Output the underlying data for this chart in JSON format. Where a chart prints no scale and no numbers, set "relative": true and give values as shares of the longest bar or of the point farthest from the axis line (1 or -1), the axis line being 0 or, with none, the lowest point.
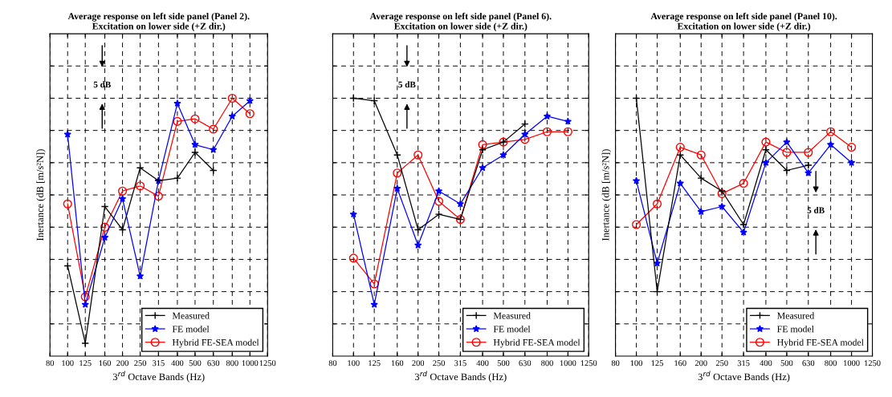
{
  "chart_data": [
    {
      "type": "line",
      "title": "Average response on left side panel (Panel 2).\nExcitation on lower side (+Z dir.)",
      "xlabel": "3$^{rd}$ Octave Bands (Hz)",
      "ylabel": "Inertance (dB [m/s²N])",
      "annotations": [
        "5 dB"
      ],
      "relative": true,
      "log": "x",
      "x": [
        100,
        125,
        160,
        200,
        250,
        315,
        400,
        500,
        630,
        800,
        1000
      ],
      "xlim": [
        80,
        1250
      ],
      "xticks": [
        80,
        100,
        125,
        160,
        200,
        250,
        315,
        400,
        500,
        630,
        800,
        1000,
        1250
      ],
      "grid": true,
      "legend": "bottom right",
      "line_style": "solid",
      "tick_labels": "x",
      "series": [
        {
          "name": "Measured",
          "color": "#000000",
          "marker": "cross",
          "values": [
            0.35,
            0.05,
            0.58,
            0.49,
            0.73,
            0.68,
            0.69,
            0.79,
            0.72,
            null,
            null
          ]
        },
        {
          "name": "FE model",
          "color": "#0000ff",
          "marker": "star",
          "values": [
            0.86,
            0.2,
            0.46,
            0.61,
            0.31,
            0.68,
            0.98,
            0.82,
            0.8,
            0.93,
            0.99
          ]
        },
        {
          "name": "Hybrid FE-SEA model",
          "color": "#ff0000",
          "marker": "circle",
          "values": [
            0.59,
            0.23,
            0.5,
            0.64,
            0.66,
            0.62,
            0.91,
            0.92,
            0.88,
            1,
            0.94
          ]
        }
      ]
    },
    {
      "type": "line",
      "title": "Average response on left side panel (Panel 6).\nExcitation on lower side (+Z dir.)",
      "xlabel": "3$^{rd}$ Octave Bands (Hz)",
      "annotations": [
        "5 dB"
      ],
      "relative": true,
      "log": "x",
      "x": [
        100,
        125,
        160,
        200,
        250,
        315,
        400,
        500,
        630,
        800,
        1000
      ],
      "xlim": [
        80,
        1250
      ],
      "xticks": [
        80,
        100,
        125,
        160,
        200,
        250,
        315,
        400,
        500,
        630,
        800,
        1000,
        1250
      ],
      "grid": true,
      "legend": "bottom right",
      "line_style": "solid",
      "tick_labels": "x",
      "series": [
        {
          "name": "Measured",
          "color": "#000000",
          "marker": "cross",
          "values": [
            1,
            0.99,
            0.78,
            0.49,
            0.55,
            0.53,
            0.8,
            0.83,
            0.9,
            null,
            null
          ]
        },
        {
          "name": "FE model",
          "color": "#0000ff",
          "marker": "star",
          "values": [
            0.55,
            0.2,
            0.65,
            0.43,
            0.64,
            0.59,
            0.73,
            0.78,
            0.86,
            0.93,
            0.91
          ]
        },
        {
          "name": "Hybrid FE-SEA model",
          "color": "#ff0000",
          "marker": "circle",
          "values": [
            0.38,
            0.28,
            0.71,
            0.78,
            0.6,
            0.53,
            0.82,
            0.83,
            0.84,
            0.87,
            0.87
          ]
        }
      ]
    },
    {
      "type": "line",
      "title": "Average response on left side panel (Panel 10).\nExcitation on lower side (+Z dir.)",
      "xlabel": "3$^{rd}$ Octave Bands (Hz)",
      "ylabel": "Inertance (dB [m/s²N])",
      "annotations": [
        "5 dB"
      ],
      "relative": true,
      "log": "x",
      "x": [
        100,
        125,
        160,
        200,
        250,
        315,
        400,
        500,
        630,
        800,
        1000
      ],
      "xlim": [
        80,
        1250
      ],
      "xticks": [
        80,
        100,
        125,
        160,
        200,
        250,
        315,
        400,
        500,
        630,
        800,
        1000,
        1250
      ],
      "grid": true,
      "legend": "bottom right",
      "line_style": "solid",
      "tick_labels": "x",
      "series": [
        {
          "name": "Measured",
          "color": "#000000",
          "marker": "cross",
          "values": [
            1,
            0.25,
            0.78,
            0.69,
            0.64,
            0.51,
            0.8,
            0.72,
            0.74,
            null,
            null
          ]
        },
        {
          "name": "FE model",
          "color": "#0000ff",
          "marker": "star",
          "values": [
            0.68,
            0.36,
            0.67,
            0.56,
            0.58,
            0.48,
            0.75,
            0.83,
            0.71,
            0.82,
            0.75
          ]
        },
        {
          "name": "Hybrid FE-SEA model",
          "color": "#ff0000",
          "marker": "circle",
          "values": [
            0.51,
            0.59,
            0.81,
            0.78,
            0.63,
            0.67,
            0.83,
            0.79,
            0.79,
            0.87,
            0.81
          ]
        }
      ]
    }
  ]
}
